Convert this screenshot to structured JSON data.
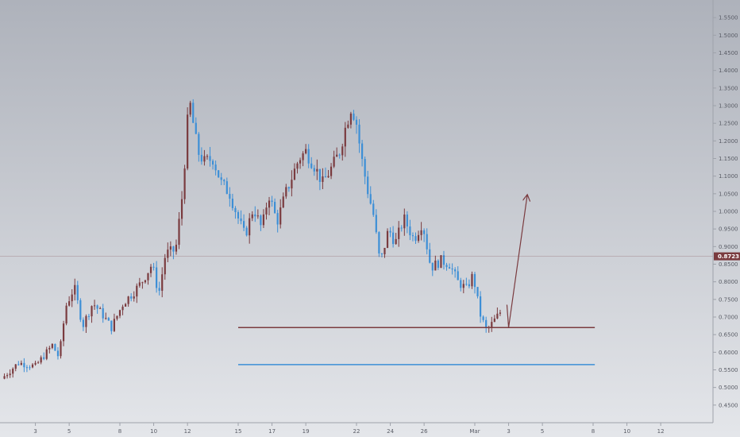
{
  "chart_data": {
    "type": "candlestick",
    "colors": {
      "bg_top": "#aeb2bb",
      "bg_bottom": "#e4e6ea",
      "up": "#7a3b3f",
      "down": "#3d8fd6",
      "resistance": "#7a3b3f",
      "support": "#3d8fd6",
      "arrow": "#7a3b3f",
      "current_price": "#7a3b3f",
      "axis_text": "#5a5d66"
    },
    "y_axis": {
      "range": [
        0.4,
        1.6
      ],
      "ticks": [
        "1.5500",
        "1.5000",
        "1.4500",
        "1.4000",
        "1.3500",
        "1.3000",
        "1.2500",
        "1.2000",
        "1.1500",
        "1.1000",
        "1.0500",
        "1.0000",
        "0.9500",
        "0.9000",
        "0.8500",
        "0.8000",
        "0.7500",
        "0.7000",
        "0.6500",
        "0.6000",
        "0.5500",
        "0.5000",
        "0.4500"
      ]
    },
    "x_axis": {
      "domain_days": [
        1,
        43
      ],
      "ticks": [
        {
          "day": 3,
          "label": "3"
        },
        {
          "day": 5,
          "label": "5"
        },
        {
          "day": 8,
          "label": "8"
        },
        {
          "day": 10,
          "label": "10"
        },
        {
          "day": 12,
          "label": "12"
        },
        {
          "day": 15,
          "label": "15"
        },
        {
          "day": 17,
          "label": "17"
        },
        {
          "day": 19,
          "label": "19"
        },
        {
          "day": 22,
          "label": "22"
        },
        {
          "day": 24,
          "label": "24"
        },
        {
          "day": 26,
          "label": "26"
        },
        {
          "day": 29,
          "label": "Mar"
        },
        {
          "day": 31,
          "label": "3"
        },
        {
          "day": 33,
          "label": "5"
        },
        {
          "day": 36,
          "label": "8"
        },
        {
          "day": 38,
          "label": "10"
        },
        {
          "day": 40,
          "label": "12"
        }
      ]
    },
    "candles_per_day": 6,
    "anchors": [
      [
        1.0,
        0.525
      ],
      [
        2.0,
        0.57
      ],
      [
        3.0,
        0.56
      ],
      [
        4.0,
        0.62
      ],
      [
        4.4,
        0.585
      ],
      [
        4.8,
        0.73
      ],
      [
        5.3,
        0.785
      ],
      [
        5.8,
        0.675
      ],
      [
        6.4,
        0.74
      ],
      [
        7.0,
        0.705
      ],
      [
        7.5,
        0.67
      ],
      [
        8.2,
        0.74
      ],
      [
        8.8,
        0.77
      ],
      [
        9.3,
        0.8
      ],
      [
        9.9,
        0.85
      ],
      [
        10.3,
        0.765
      ],
      [
        10.7,
        0.88
      ],
      [
        11.3,
        0.89
      ],
      [
        11.7,
        1.05
      ],
      [
        12.1,
        1.32
      ],
      [
        12.6,
        1.17
      ],
      [
        13.0,
        1.14
      ],
      [
        13.5,
        1.15
      ],
      [
        14.0,
        1.08
      ],
      [
        14.5,
        1.05
      ],
      [
        15.0,
        0.98
      ],
      [
        15.4,
        0.93
      ],
      [
        15.9,
        1.01
      ],
      [
        16.4,
        0.95
      ],
      [
        16.8,
        1.05
      ],
      [
        17.3,
        0.97
      ],
      [
        17.8,
        1.05
      ],
      [
        18.2,
        1.1
      ],
      [
        18.6,
        1.15
      ],
      [
        19.0,
        1.17
      ],
      [
        19.5,
        1.13
      ],
      [
        20.0,
        1.08
      ],
      [
        20.6,
        1.13
      ],
      [
        21.0,
        1.17
      ],
      [
        21.3,
        1.23
      ],
      [
        21.7,
        1.3
      ],
      [
        22.0,
        1.25
      ],
      [
        22.3,
        1.15
      ],
      [
        22.7,
        1.05
      ],
      [
        23.0,
        0.99
      ],
      [
        23.4,
        0.85
      ],
      [
        23.9,
        0.95
      ],
      [
        24.3,
        0.91
      ],
      [
        24.8,
        0.98
      ],
      [
        25.4,
        0.92
      ],
      [
        25.9,
        0.97
      ],
      [
        26.4,
        0.84
      ],
      [
        27.0,
        0.86
      ],
      [
        27.5,
        0.85
      ],
      [
        28.0,
        0.8
      ],
      [
        28.5,
        0.78
      ],
      [
        28.9,
        0.82
      ],
      [
        29.3,
        0.71
      ],
      [
        29.7,
        0.66
      ],
      [
        30.0,
        0.68
      ],
      [
        30.3,
        0.7
      ],
      [
        30.6,
        0.72
      ]
    ],
    "current_price": {
      "value": 0.8723,
      "label": "0.8723"
    },
    "levels": [
      {
        "name": "resistance",
        "value": 0.67,
        "from_day": 15,
        "to_day": 36.1
      },
      {
        "name": "support",
        "value": 0.565,
        "from_day": 15,
        "to_day": 36.1
      }
    ],
    "projection_path": [
      {
        "day": 30.9,
        "price": 0.735
      },
      {
        "day": 31.0,
        "price": 0.67
      },
      {
        "day": 32.1,
        "price": 1.045
      }
    ]
  }
}
